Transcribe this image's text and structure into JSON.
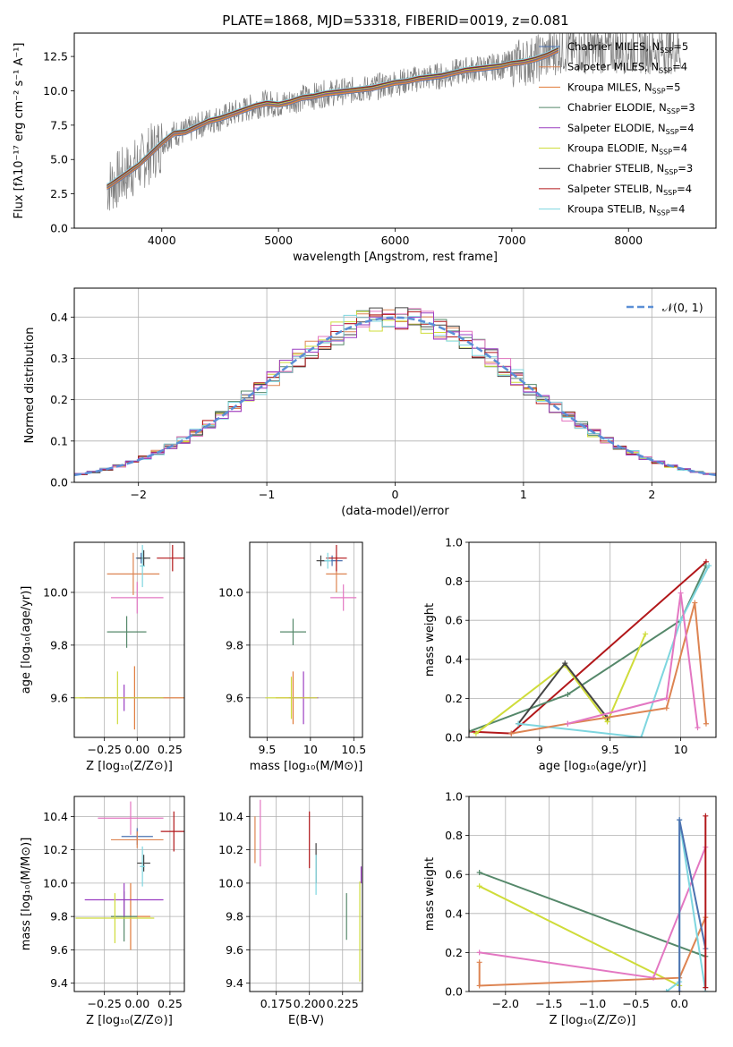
{
  "figure_title": "PLATE=1868, MJD=53318, FIBERID=0019, z=0.081",
  "colors": {
    "data": "#808080",
    "chabrier_miles": "#4c72b0",
    "salpeter_miles": "#dd8452",
    "kroupa_miles": "#e07b39",
    "chabrier_elodie": "#55886a",
    "salpeter_elodie": "#9b3fc1",
    "kroupa_elodie": "#cfdc3a",
    "chabrier_stelib": "#444444",
    "salpeter_stelib": "#b2171a",
    "kroupa_stelib": "#7ed6df",
    "pink": "#e377c2",
    "gaussian": "#5b8fd6"
  },
  "chart_data": [
    {
      "id": "spectrum",
      "type": "line",
      "title": "PLATE=1868, MJD=53318, FIBERID=0019, z=0.081",
      "xlabel": "wavelength [Angstrom, rest frame]",
      "ylabel": "Flux [fλ10⁻¹⁷ erg cm⁻² s⁻¹ A⁻¹]",
      "xlim": [
        3250,
        8750
      ],
      "ylim": [
        0,
        14.2
      ],
      "xticks": [
        4000,
        5000,
        6000,
        7000,
        8000
      ],
      "yticks": [
        0.0,
        2.5,
        5.0,
        7.5,
        10.0,
        12.5
      ],
      "legend_position": "top-right",
      "legend": [
        {
          "label": "Chabrier MILES, N",
          "sub": "SSP",
          "suffix": "=5"
        },
        {
          "label": "Salpeter MILES, N",
          "sub": "SSP",
          "suffix": "=4"
        },
        {
          "label": "Kroupa MILES, N",
          "sub": "SSP",
          "suffix": "=5"
        },
        {
          "label": "Chabrier ELODIE, N",
          "sub": "SSP",
          "suffix": "=3"
        },
        {
          "label": "Salpeter ELODIE, N",
          "sub": "SSP",
          "suffix": "=4"
        },
        {
          "label": "Kroupa ELODIE, N",
          "sub": "SSP",
          "suffix": "=4"
        },
        {
          "label": "Chabrier STELIB, N",
          "sub": "SSP",
          "suffix": "=3"
        },
        {
          "label": "Salpeter STELIB, N",
          "sub": "SSP",
          "suffix": "=4"
        },
        {
          "label": "Kroupa STELIB, N",
          "sub": "SSP",
          "suffix": "=4"
        }
      ],
      "data_x": [
        3530,
        3600,
        3700,
        3800,
        3900,
        4000,
        4100,
        4200,
        4300,
        4400,
        4500,
        4600,
        4700,
        4800,
        4900,
        5000,
        5100,
        5200,
        5300,
        5400,
        5500,
        5600,
        5700,
        5800,
        5900,
        6000,
        6100,
        6200,
        6300,
        6400,
        6500,
        6600,
        6700,
        6800,
        6900,
        7000,
        7100,
        7200,
        7300,
        7400
      ],
      "model_y": [
        3.0,
        3.4,
        4.0,
        4.6,
        5.4,
        6.2,
        6.9,
        7.0,
        7.4,
        7.8,
        8.0,
        8.3,
        8.6,
        8.9,
        9.1,
        9.0,
        9.2,
        9.5,
        9.6,
        9.8,
        9.9,
        10.0,
        10.1,
        10.2,
        10.4,
        10.6,
        10.7,
        10.9,
        11.0,
        11.1,
        11.3,
        11.5,
        11.6,
        11.7,
        11.8,
        12.0,
        12.1,
        12.3,
        12.6,
        13.0
      ]
    },
    {
      "id": "residuals",
      "type": "histogram",
      "xlabel": "(data-model)/error",
      "ylabel": "Normed distribution",
      "xlim": [
        -2.5,
        2.5
      ],
      "ylim": [
        0,
        0.47
      ],
      "xticks": [
        -2,
        -1,
        0,
        1,
        2
      ],
      "yticks": [
        0.0,
        0.1,
        0.2,
        0.3,
        0.4
      ],
      "grid": true,
      "legend_position": "top-right",
      "gaussian_label": "𝒩(0, 1)",
      "bin_width": 0.1
    },
    {
      "id": "age_vs_Z",
      "type": "scatter",
      "xlabel": "Z [log₁₀(Z/Z⊙)]",
      "ylabel": "age  [log₁₀(age/yr)]",
      "xlim": [
        -0.48,
        0.36
      ],
      "ylim": [
        9.45,
        10.19
      ],
      "xticks": [
        -0.25,
        0.0,
        0.25
      ],
      "xticklabels": [
        "−0.25",
        "0.00",
        "0.25"
      ],
      "yticks": [
        9.6,
        9.8,
        10.0
      ],
      "points": [
        {
          "series": "chabrier_miles",
          "x": 0.03,
          "y": 10.13,
          "xerr": 0.04,
          "yerr": 0.02
        },
        {
          "series": "salpeter_miles",
          "x": -0.03,
          "y": 10.07,
          "xerr": 0.2,
          "yerr": 0.08
        },
        {
          "series": "kroupa_miles",
          "x": -0.02,
          "y": 9.6,
          "xerr": 0.42,
          "yerr": 0.12
        },
        {
          "series": "chabrier_elodie",
          "x": -0.08,
          "y": 9.85,
          "xerr": 0.15,
          "yerr": 0.06
        },
        {
          "series": "salpeter_elodie",
          "x": -0.1,
          "y": 9.6,
          "xerr": 0.3,
          "yerr": 0.05
        },
        {
          "series": "kroupa_elodie",
          "x": -0.15,
          "y": 9.6,
          "xerr": 0.35,
          "yerr": 0.1
        },
        {
          "series": "chabrier_stelib",
          "x": 0.05,
          "y": 10.13,
          "xerr": 0.05,
          "yerr": 0.03
        },
        {
          "series": "salpeter_stelib",
          "x": 0.27,
          "y": 10.13,
          "xerr": 0.12,
          "yerr": 0.05
        },
        {
          "series": "kroupa_stelib",
          "x": 0.04,
          "y": 10.1,
          "xerr": 0.02,
          "yerr": 0.08
        },
        {
          "series": "pink",
          "x": 0.0,
          "y": 9.98,
          "xerr": 0.2,
          "yerr": 0.06
        }
      ]
    },
    {
      "id": "age_vs_mass",
      "type": "scatter",
      "xlabel": "mass [log₁₀(M/M⊙)]",
      "ylabel": "",
      "xlim": [
        9.3,
        10.6
      ],
      "ylim": [
        9.45,
        10.19
      ],
      "xticks": [
        9.5,
        10.0,
        10.5
      ],
      "yticks": [
        9.6,
        9.8,
        10.0
      ],
      "points": [
        {
          "series": "chabrier_miles",
          "x": 10.25,
          "y": 10.12,
          "xerr": 0.12,
          "yerr": 0.02
        },
        {
          "series": "salpeter_miles",
          "x": 10.3,
          "y": 10.07,
          "xerr": 0.12,
          "yerr": 0.07
        },
        {
          "series": "kroupa_miles",
          "x": 9.8,
          "y": 9.6,
          "xerr": 0.2,
          "yerr": 0.1
        },
        {
          "series": "chabrier_elodie",
          "x": 9.8,
          "y": 9.85,
          "xerr": 0.15,
          "yerr": 0.05
        },
        {
          "series": "salpeter_elodie",
          "x": 9.92,
          "y": 9.6,
          "xerr": 0.17,
          "yerr": 0.1
        },
        {
          "series": "kroupa_elodie",
          "x": 9.78,
          "y": 9.6,
          "xerr": 0.3,
          "yerr": 0.08
        },
        {
          "series": "chabrier_stelib",
          "x": 10.12,
          "y": 10.12,
          "xerr": 0.05,
          "yerr": 0.02
        },
        {
          "series": "salpeter_stelib",
          "x": 10.3,
          "y": 10.13,
          "xerr": 0.12,
          "yerr": 0.05
        },
        {
          "series": "kroupa_stelib",
          "x": 10.2,
          "y": 10.12,
          "xerr": 0.04,
          "yerr": 0.03
        },
        {
          "series": "pink",
          "x": 10.38,
          "y": 9.98,
          "xerr": 0.15,
          "yerr": 0.05
        }
      ]
    },
    {
      "id": "weight_vs_age",
      "type": "line",
      "xlabel": "age  [log₁₀(age/yr)]",
      "ylabel": "mass weight",
      "xlim": [
        8.5,
        10.25
      ],
      "ylim": [
        0.0,
        1.0
      ],
      "xticks": [
        9.0,
        9.5,
        10.0
      ],
      "yticks": [
        0.0,
        0.2,
        0.4,
        0.6,
        0.8,
        1.0
      ],
      "series": [
        {
          "key": "salpeter_stelib",
          "x": [
            8.5,
            8.8,
            10.18
          ],
          "y": [
            0.03,
            0.02,
            0.9
          ]
        },
        {
          "key": "chabrier_elodie",
          "x": [
            8.5,
            9.2,
            10.0,
            10.18
          ],
          "y": [
            0.03,
            0.22,
            0.6,
            0.88
          ]
        },
        {
          "key": "kroupa_elodie",
          "x": [
            8.55,
            9.18,
            9.48,
            9.75
          ],
          "y": [
            0.02,
            0.37,
            0.08,
            0.53
          ]
        },
        {
          "key": "chabrier_stelib",
          "x": [
            8.85,
            9.18,
            9.48
          ],
          "y": [
            0.07,
            0.38,
            0.1
          ]
        },
        {
          "key": "kroupa_stelib",
          "x": [
            8.85,
            9.72,
            10.0,
            10.2
          ],
          "y": [
            0.07,
            0.0,
            0.6,
            0.88
          ]
        },
        {
          "key": "salpeter_miles",
          "x": [
            8.8,
            9.2,
            9.9,
            10.1,
            10.18
          ],
          "y": [
            0.02,
            0.07,
            0.15,
            0.69,
            0.07
          ]
        },
        {
          "key": "pink",
          "x": [
            9.2,
            9.9,
            10.0,
            10.12
          ],
          "y": [
            0.07,
            0.2,
            0.74,
            0.05
          ]
        }
      ]
    },
    {
      "id": "mass_vs_Z",
      "type": "scatter",
      "xlabel": "Z [log₁₀(Z/Z⊙)]",
      "ylabel": "mass [log₁₀(M/M⊙)]",
      "xlim": [
        -0.48,
        0.36
      ],
      "ylim": [
        9.35,
        10.52
      ],
      "xticks": [
        -0.25,
        0.0,
        0.25
      ],
      "xticklabels": [
        "−0.25",
        "0.00",
        "0.25"
      ],
      "yticks": [
        9.4,
        9.6,
        9.8,
        10.0,
        10.2,
        10.4
      ],
      "points": [
        {
          "series": "chabrier_miles",
          "x": 0.0,
          "y": 10.28,
          "xerr": 0.12,
          "yerr": 0.05
        },
        {
          "series": "salpeter_miles",
          "x": 0.0,
          "y": 10.26,
          "xerr": 0.2,
          "yerr": 0.05
        },
        {
          "series": "kroupa_miles",
          "x": -0.05,
          "y": 9.8,
          "xerr": 0.15,
          "yerr": 0.2
        },
        {
          "series": "chabrier_elodie",
          "x": -0.1,
          "y": 9.8,
          "xerr": 0.1,
          "yerr": 0.15
        },
        {
          "series": "salpeter_elodie",
          "x": -0.1,
          "y": 9.9,
          "xerr": 0.3,
          "yerr": 0.1
        },
        {
          "series": "kroupa_elodie",
          "x": -0.17,
          "y": 9.79,
          "xerr": 0.3,
          "yerr": 0.15
        },
        {
          "series": "chabrier_stelib",
          "x": 0.05,
          "y": 10.12,
          "xerr": 0.05,
          "yerr": 0.05
        },
        {
          "series": "salpeter_stelib",
          "x": 0.28,
          "y": 10.31,
          "xerr": 0.1,
          "yerr": 0.12
        },
        {
          "series": "kroupa_stelib",
          "x": 0.04,
          "y": 10.1,
          "xerr": 0.02,
          "yerr": 0.12
        },
        {
          "series": "pink",
          "x": -0.05,
          "y": 10.39,
          "xerr": 0.25,
          "yerr": 0.1
        }
      ]
    },
    {
      "id": "mass_vs_ebv",
      "type": "scatter",
      "xlabel": "E(B-V)",
      "ylabel": "",
      "xlim": [
        0.155,
        0.24
      ],
      "ylim": [
        9.35,
        10.52
      ],
      "xticks": [
        0.175,
        0.2,
        0.225
      ],
      "xticklabels": [
        "0.175",
        "0.200",
        "0.225"
      ],
      "yticks": [
        9.4,
        9.6,
        9.8,
        10.0,
        10.2,
        10.4
      ],
      "points": [
        {
          "series": "salpeter_miles",
          "x": 0.159,
          "y": 10.26,
          "xerr": 0,
          "yerr": 0.14
        },
        {
          "series": "pink",
          "x": 0.163,
          "y": 10.3,
          "xerr": 0,
          "yerr": 0.2
        },
        {
          "series": "salpeter_stelib",
          "x": 0.2,
          "y": 10.26,
          "xerr": 0,
          "yerr": 0.17
        },
        {
          "series": "chabrier_stelib",
          "x": 0.205,
          "y": 10.12,
          "xerr": 0,
          "yerr": 0.12
        },
        {
          "series": "kroupa_stelib",
          "x": 0.205,
          "y": 10.05,
          "xerr": 0,
          "yerr": 0.12
        },
        {
          "series": "chabrier_elodie",
          "x": 0.228,
          "y": 9.8,
          "xerr": 0,
          "yerr": 0.14
        },
        {
          "series": "kroupa_elodie",
          "x": 0.238,
          "y": 9.71,
          "xerr": 0,
          "yerr": 0.3
        },
        {
          "series": "salpeter_elodie",
          "x": 0.239,
          "y": 10.05,
          "xerr": 0,
          "yerr": 0.05
        }
      ]
    },
    {
      "id": "weight_vs_Z",
      "type": "line",
      "xlabel": "Z [log₁₀(Z/Z⊙)]",
      "ylabel": "mass weight",
      "xlim": [
        -2.42,
        0.42
      ],
      "ylim": [
        0.0,
        1.0
      ],
      "xticks": [
        -2.0,
        -1.5,
        -1.0,
        -0.5,
        0.0
      ],
      "xticklabels": [
        "−2.0",
        "−1.5",
        "−1.0",
        "−0.5",
        "0.0"
      ],
      "yticks": [
        0.0,
        0.2,
        0.4,
        0.6,
        0.8,
        1.0
      ],
      "series": [
        {
          "key": "chabrier_elodie",
          "x": [
            -2.3,
            0.3
          ],
          "y": [
            0.61,
            0.18
          ]
        },
        {
          "key": "kroupa_elodie",
          "x": [
            -2.3,
            0.0
          ],
          "y": [
            0.54,
            0.03
          ]
        },
        {
          "key": "pink",
          "x": [
            -2.3,
            -0.3,
            0.3
          ],
          "y": [
            0.2,
            0.07,
            0.74
          ]
        },
        {
          "key": "salpeter_miles",
          "x": [
            -2.3,
            -2.3,
            0.0,
            0.3
          ],
          "y": [
            0.15,
            0.03,
            0.07,
            0.38
          ]
        },
        {
          "key": "kroupa_stelib",
          "x": [
            -0.15,
            0.0,
            0.0,
            0.3
          ],
          "y": [
            0.0,
            0.05,
            0.88,
            0.0
          ]
        },
        {
          "key": "chabrier_miles",
          "x": [
            0.0,
            0.0,
            0.3
          ],
          "y": [
            0.0,
            0.88,
            0.22
          ]
        },
        {
          "key": "salpeter_stelib",
          "x": [
            0.3,
            0.3
          ],
          "y": [
            0.02,
            0.9
          ]
        }
      ]
    }
  ]
}
